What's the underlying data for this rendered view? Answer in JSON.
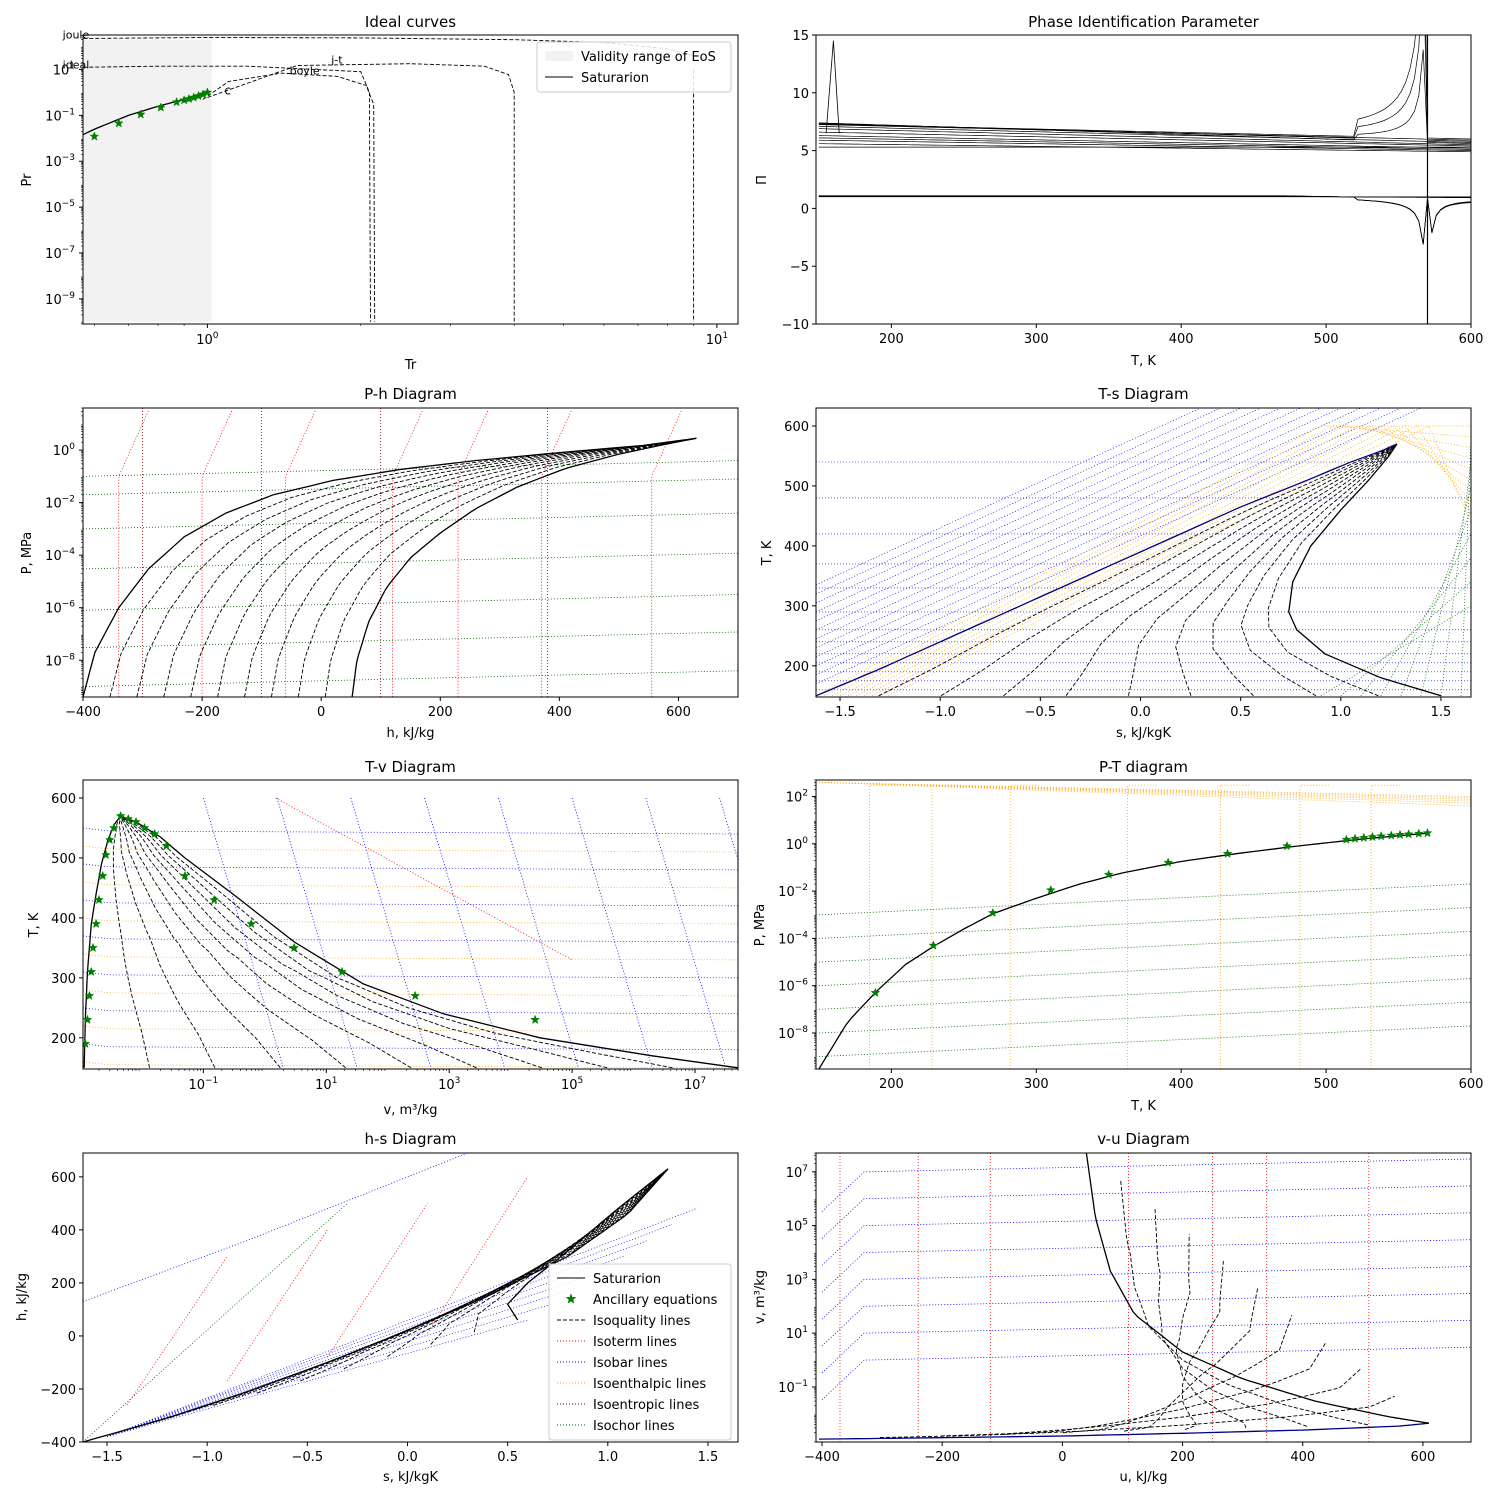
{
  "figure": {
    "legend_labels": {
      "validity": "Validity range of EoS",
      "saturation": "Saturarion",
      "ancillary": "Ancillary equations",
      "isoquality": "Isoquality lines",
      "isotherm": "Isoterm lines",
      "isobar": "Isobar lines",
      "isenthalpic": "Isoenthalpic lines",
      "isentropic": "Isoentropic lines",
      "isochor": "Isochor lines"
    },
    "colors": {
      "saturation": "#000000",
      "ancillary": "#008000",
      "isotherm": "#ff0000",
      "isobar": "#0000ff",
      "isenthalpic": "#ffa500",
      "isentropic": "#800000",
      "isochor": "#006400",
      "validity": "#f2f2f2"
    }
  },
  "chart_data": [
    {
      "type": "line",
      "title": "Ideal curves",
      "xlabel": "Tr",
      "ylabel": "Pr",
      "xscale": "log",
      "yscale": "log",
      "xlim": [
        0.57,
        11
      ],
      "ylim": [
        8e-11,
        320
      ],
      "xticks": [
        {
          "v": 1,
          "base": "10",
          "exp": "0"
        },
        {
          "v": 10,
          "base": "10",
          "exp": "1"
        }
      ],
      "yticks": [
        {
          "v": 1e-09,
          "base": "10",
          "exp": "−9"
        },
        {
          "v": 1e-07,
          "base": "10",
          "exp": "−7"
        },
        {
          "v": 1e-05,
          "base": "10",
          "exp": "−5"
        },
        {
          "v": 0.001,
          "base": "10",
          "exp": "−3"
        },
        {
          "v": 0.1,
          "base": "10",
          "exp": "−1"
        },
        {
          "v": 10,
          "base": "10",
          "exp": "1"
        }
      ],
      "legend": "top-right",
      "curve_labels": [
        "joule",
        "ideal",
        "j-t",
        "boyle",
        "c"
      ],
      "validity_range": {
        "tr": [
          0.26,
          1.02
        ],
        "pr": [
          1e-10,
          200
        ]
      },
      "saturation": {
        "tr": [
          0.259,
          0.28,
          0.32,
          0.36,
          0.42,
          0.5,
          0.6,
          0.7,
          0.8,
          0.9,
          0.96,
          1.0
        ],
        "pr": [
          1e-10,
          3e-09,
          2e-07,
          7e-06,
          0.0003,
          0.0035,
          0.025,
          0.1,
          0.25,
          0.5,
          0.75,
          1.0
        ]
      },
      "ancillary_points": {
        "tr": [
          0.259,
          0.33,
          0.4,
          0.47,
          0.54,
          0.6,
          0.67,
          0.74,
          0.81,
          0.87,
          0.9,
          0.92,
          0.94,
          0.96,
          0.98,
          1.0
        ],
        "pr": [
          1e-10,
          2e-07,
          2e-05,
          0.0003,
          0.003,
          0.012,
          0.045,
          0.11,
          0.22,
          0.38,
          0.46,
          0.52,
          0.6,
          0.7,
          0.82,
          1.0
        ]
      },
      "joule": {
        "tr": [
          0.26,
          0.5,
          1.0,
          2.0,
          4.0,
          6.0,
          8.0,
          9.5
        ],
        "pr": [
          180,
          220,
          250,
          240,
          200,
          150,
          80,
          30
        ]
      },
      "ideal": {
        "tr": [
          0.26,
          0.5,
          0.8,
          1.2,
          2.0,
          2.08,
          2.09
        ],
        "pr": [
          8,
          12,
          14,
          14,
          8,
          1,
          1e-10
        ]
      },
      "boyle": {
        "tr": [
          0.98,
          1.1,
          1.4,
          1.8,
          2.05,
          2.12,
          2.13
        ],
        "pr": [
          0.5,
          3,
          7,
          5,
          2,
          0.3,
          1e-10
        ]
      },
      "joule_thomson": {
        "tr": [
          1.0,
          1.5,
          2.5,
          3.5,
          3.9,
          4.0,
          4.0
        ],
        "pr": [
          0.6,
          15,
          18,
          14,
          6,
          1,
          1e-10
        ]
      },
      "joule_inversion": {
        "tr": [
          9.0,
          9.0
        ],
        "pr": [
          10,
          1e-10
        ]
      }
    },
    {
      "type": "line",
      "title": "Phase Identification Parameter",
      "xlabel": "T, K",
      "ylabel": "Π",
      "xlim": [
        148,
        600
      ],
      "ylim": [
        -10,
        15
      ],
      "xticks": [
        200,
        300,
        400,
        500,
        600
      ],
      "yticks": [
        -10,
        -5,
        0,
        5,
        10,
        15
      ],
      "critical_temperature": 570,
      "gas_branch_start": [
        7.4,
        7.35,
        7.3,
        7.25,
        7.1,
        6.9,
        6.6,
        6.3,
        6.1,
        5.9,
        5.6,
        5.3
      ],
      "gas_branch_end": [
        5.6,
        5.8,
        6.0,
        5.9,
        5.7,
        5.5,
        5.4,
        5.2,
        5.1,
        5.0,
        4.9,
        5.3
      ],
      "liquid_branch": {
        "start": 1.0,
        "end": 1.0
      }
    },
    {
      "type": "line",
      "title": "P-h Diagram",
      "xlabel": "h, kJ/kg",
      "ylabel": "P, MPa",
      "yscale": "log",
      "xlim": [
        -400,
        700
      ],
      "ylim": [
        4e-10,
        40
      ],
      "xticks": [
        -400,
        -200,
        0,
        200,
        400,
        600
      ],
      "yticks": [
        {
          "v": 1e-08,
          "base": "10",
          "exp": "−8"
        },
        {
          "v": 1e-06,
          "base": "10",
          "exp": "−6"
        },
        {
          "v": 0.0001,
          "base": "10",
          "exp": "−4"
        },
        {
          "v": 0.01,
          "base": "10",
          "exp": "−2"
        },
        {
          "v": 1,
          "base": "10",
          "exp": "0"
        }
      ],
      "saturated_liquid": {
        "h": [
          -400,
          -380,
          -340,
          -290,
          -230,
          -160,
          -80,
          20,
          130,
          260,
          400,
          540,
          630
        ],
        "p": [
          4e-10,
          2e-08,
          1e-06,
          3e-05,
          0.0005,
          0.004,
          0.02,
          0.07,
          0.18,
          0.4,
          0.8,
          1.5,
          2.8
        ]
      },
      "saturated_vapor": {
        "h": [
          52,
          60,
          80,
          110,
          150,
          200,
          260,
          330,
          410,
          500,
          580,
          630
        ],
        "p": [
          4e-10,
          1e-08,
          3e-07,
          6e-06,
          8e-05,
          0.0007,
          0.006,
          0.04,
          0.2,
          0.7,
          1.7,
          2.8
        ]
      },
      "isotherm_h": [
        -340,
        -200,
        -60,
        120,
        230,
        370,
        555
      ],
      "isenthalpic_h": [
        -300,
        -100,
        100,
        380
      ],
      "isochor_levels": [
        1e-09,
        3e-08,
        8e-07,
        3e-05,
        0.001,
        0.02,
        0.1
      ]
    },
    {
      "type": "line",
      "title": "T-s Diagram",
      "xlabel": "s, kJ/kgK",
      "ylabel": "T, K",
      "xlim": [
        -1.62,
        1.65
      ],
      "ylim": [
        148,
        630
      ],
      "xticks": [
        -1.5,
        -1.0,
        -0.5,
        0.0,
        0.5,
        1.0,
        1.5
      ],
      "yticks": [
        200,
        300,
        400,
        500,
        600
      ],
      "saturated_liquid": {
        "s": [
          -1.62,
          -1.3,
          -1.0,
          -0.7,
          -0.4,
          -0.1,
          0.2,
          0.5,
          0.8,
          1.05,
          1.2,
          1.28
        ],
        "t": [
          150,
          195,
          240,
          285,
          330,
          375,
          420,
          465,
          505,
          540,
          558,
          570
        ]
      },
      "saturated_vapor": {
        "s": [
          1.5,
          1.2,
          0.92,
          0.78,
          0.74,
          0.76,
          0.85,
          1.0,
          1.14,
          1.24,
          1.28
        ],
        "t": [
          150,
          180,
          220,
          260,
          290,
          340,
          400,
          460,
          510,
          550,
          570
        ]
      },
      "isotherm_levels": [
        160,
        175,
        190,
        205,
        220,
        240,
        260,
        290,
        330,
        370,
        420,
        480,
        540
      ]
    },
    {
      "type": "line",
      "title": "T-v Diagram",
      "xlabel": "v, m³/kg",
      "ylabel": "T, K",
      "xscale": "log",
      "xlim": [
        0.0011,
        50000000.0
      ],
      "ylim": [
        148,
        630
      ],
      "xticks": [
        {
          "v": 0.1,
          "base": "10",
          "exp": "−1"
        },
        {
          "v": 10,
          "base": "10",
          "exp": "1"
        },
        {
          "v": 1000,
          "base": "10",
          "exp": "3"
        },
        {
          "v": 100000,
          "base": "10",
          "exp": "5"
        },
        {
          "v": 10000000,
          "base": "10",
          "exp": "7"
        }
      ],
      "yticks": [
        200,
        300,
        400,
        500,
        600
      ],
      "saturated_liquid": {
        "v": [
          0.00115,
          0.0012,
          0.0013,
          0.0015,
          0.0018,
          0.0022,
          0.0028,
          0.0035,
          0.0045
        ],
        "t": [
          150,
          230,
          310,
          390,
          440,
          490,
          530,
          555,
          570
        ]
      },
      "saturated_vapor": {
        "v": [
          0.0045,
          0.008,
          0.02,
          0.05,
          0.3,
          3,
          40,
          800,
          30000,
          2000000,
          50000000
        ],
        "t": [
          570,
          560,
          535,
          500,
          440,
          360,
          290,
          240,
          200,
          170,
          150
        ]
      },
      "ancillary_points": {
        "v": [
          0.0012,
          0.0013,
          0.0014,
          0.0015,
          0.0016,
          0.0018,
          0.002,
          0.0023,
          0.0026,
          0.003,
          0.0035,
          0.0045,
          0.006,
          0.008,
          0.011,
          0.016,
          0.025,
          0.05,
          0.15,
          0.6,
          3,
          18,
          280,
          25000
        ],
        "t": [
          190,
          230,
          270,
          310,
          350,
          390,
          430,
          470,
          505,
          530,
          550,
          570,
          565,
          560,
          550,
          540,
          520,
          470,
          430,
          390,
          350,
          310,
          270,
          230
        ]
      }
    },
    {
      "type": "line",
      "title": "P-T diagram",
      "xlabel": "T, K",
      "ylabel": "P, MPa",
      "yscale": "log",
      "xlim": [
        148,
        600
      ],
      "ylim": [
        3e-10,
        500
      ],
      "xticks": [
        200,
        300,
        400,
        500,
        600
      ],
      "yticks": [
        {
          "v": 1e-08,
          "base": "10",
          "exp": "−8"
        },
        {
          "v": 1e-06,
          "base": "10",
          "exp": "−6"
        },
        {
          "v": 0.0001,
          "base": "10",
          "exp": "−4"
        },
        {
          "v": 0.01,
          "base": "10",
          "exp": "−2"
        },
        {
          "v": 1,
          "base": "10",
          "exp": "0"
        },
        {
          "v": 100,
          "base": "10",
          "exp": "2"
        }
      ],
      "saturation": {
        "t": [
          150,
          170,
          190,
          210,
          230,
          250,
          270,
          300,
          330,
          360,
          400,
          440,
          480,
          520,
          550,
          570
        ],
        "p": [
          3e-10,
          3e-08,
          6e-07,
          8e-06,
          5e-05,
          0.00025,
          0.0011,
          0.005,
          0.02,
          0.06,
          0.18,
          0.4,
          0.8,
          1.5,
          2.2,
          2.8
        ]
      },
      "ancillary_points": {
        "t": [
          189,
          229,
          270,
          310,
          350,
          391,
          432,
          473,
          514,
          520,
          526,
          532,
          538,
          545,
          551,
          557,
          564,
          570
        ],
        "p": [
          5e-07,
          5e-05,
          0.0012,
          0.011,
          0.05,
          0.16,
          0.38,
          0.8,
          1.5,
          1.65,
          1.8,
          1.95,
          2.1,
          2.25,
          2.4,
          2.55,
          2.7,
          2.85
        ]
      },
      "isenthalpic_t": [
        185,
        228,
        282,
        363,
        427,
        482,
        531
      ],
      "isochor_offsets": [
        1e-09,
        1e-08,
        1e-07,
        1e-06,
        1e-05,
        0.0001,
        0.001
      ]
    },
    {
      "type": "line",
      "title": "h-s Diagram",
      "xlabel": "s, kJ/kgK",
      "ylabel": "h, kJ/kg",
      "xlim": [
        -1.62,
        1.65
      ],
      "ylim": [
        -400,
        690
      ],
      "xticks": [
        -1.5,
        -1.0,
        -0.5,
        0.0,
        0.5,
        1.0,
        1.5
      ],
      "yticks": [
        -400,
        -200,
        0,
        200,
        400,
        600
      ],
      "legend": "bottom-right",
      "saturated_liquid": {
        "s": [
          -1.62,
          -1.2,
          -0.8,
          -0.4,
          0.0,
          0.4,
          0.8,
          1.1,
          1.3
        ],
        "h": [
          -400,
          -310,
          -210,
          -100,
          20,
          150,
          300,
          460,
          630
        ]
      },
      "saturated_vapor": {
        "s": [
          1.3,
          1.05,
          0.8,
          0.6,
          0.5,
          0.55
        ],
        "h": [
          630,
          480,
          320,
          200,
          120,
          60
        ]
      }
    },
    {
      "type": "line",
      "title": "v-u Diagram",
      "xlabel": "u, kJ/kg",
      "ylabel": "v, m³/kg",
      "yscale": "log",
      "xlim": [
        -410,
        680
      ],
      "ylim": [
        0.0009,
        50000000.0
      ],
      "xticks": [
        -400,
        -200,
        0,
        200,
        400,
        600
      ],
      "yticks": [
        {
          "v": 0.1,
          "base": "10",
          "exp": "−1"
        },
        {
          "v": 10,
          "base": "10",
          "exp": "1"
        },
        {
          "v": 1000,
          "base": "10",
          "exp": "3"
        },
        {
          "v": 100000,
          "base": "10",
          "exp": "5"
        },
        {
          "v": 10000000,
          "base": "10",
          "exp": "7"
        }
      ],
      "saturated_liquid": {
        "u": [
          -405,
          -200,
          0,
          200,
          400,
          560,
          610
        ],
        "v": [
          0.00115,
          0.0013,
          0.0015,
          0.0019,
          0.0025,
          0.0035,
          0.0045
        ]
      },
      "saturated_vapor": {
        "u": [
          40,
          55,
          80,
          120,
          200,
          300,
          420,
          540,
          610
        ],
        "v": [
          50000000,
          200000,
          2000,
          50,
          2,
          0.2,
          0.03,
          0.008,
          0.0045
        ]
      }
    }
  ]
}
